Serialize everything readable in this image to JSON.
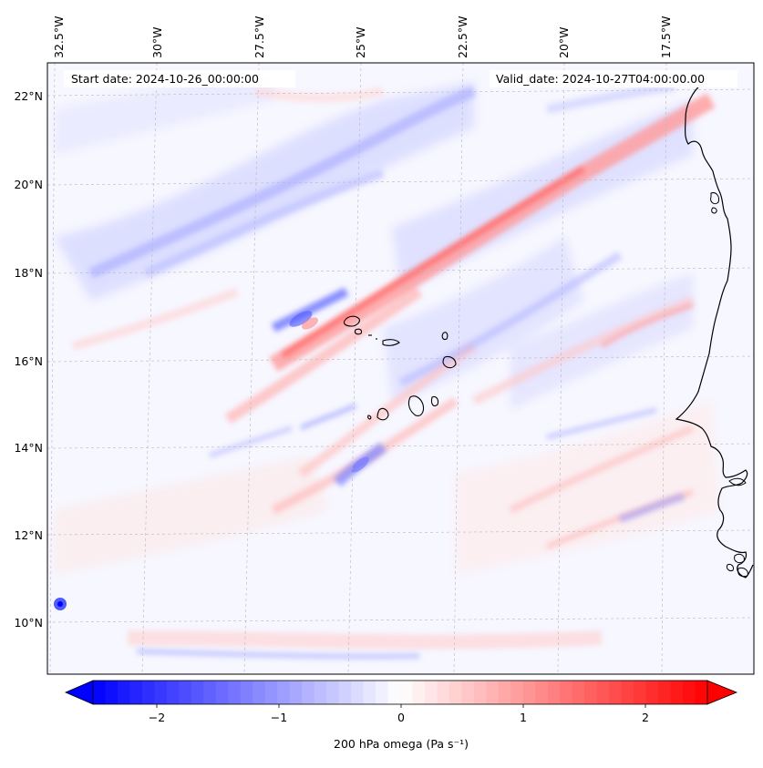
{
  "map": {
    "start_date": "Start date: 2024-10-26_00:00:00",
    "valid_date": "Valid_date: 2024-10-27T04:00:00.00",
    "lon_labels": [
      "32.5°W",
      "30°W",
      "27.5°W",
      "25°W",
      "22.5°W",
      "20°W",
      "17.5°W"
    ],
    "lat_labels": [
      "22°N",
      "20°N",
      "18°N",
      "16°N",
      "14°N",
      "12°N",
      "10°N"
    ],
    "variable": "200 hPa omega",
    "units": "Pa s⁻¹"
  },
  "colorbar": {
    "ticks": [
      "−2",
      "−1",
      "0",
      "1",
      "2"
    ],
    "label": "200 hPa omega (Pa s⁻¹)",
    "min": -2.7,
    "max": 2.7,
    "colors": {
      "negative": "#0000ff",
      "zero": "#ffffff",
      "positive": "#ff0000"
    }
  }
}
